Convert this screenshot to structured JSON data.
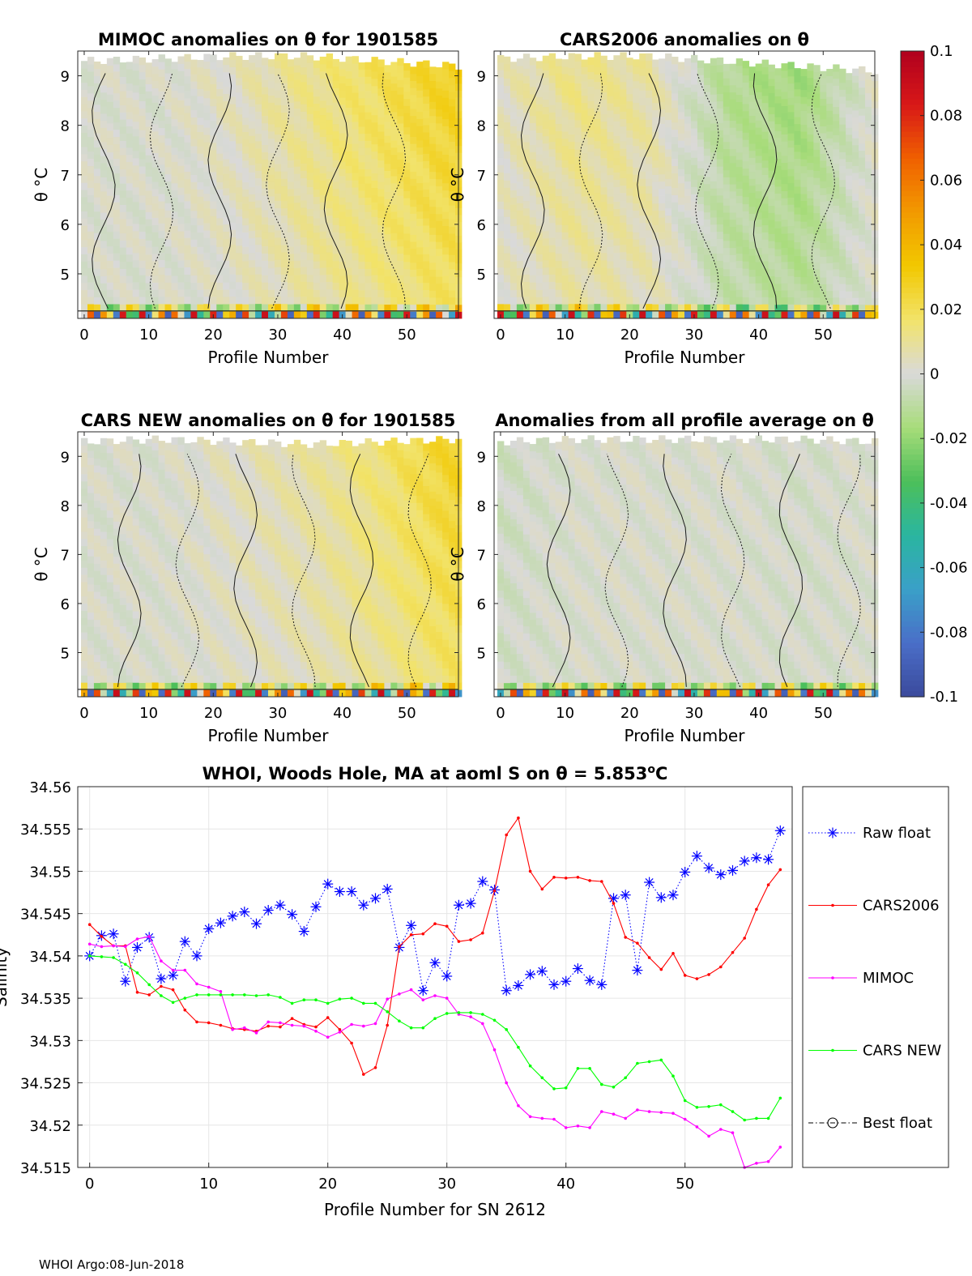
{
  "footer": "WHOI Argo:08-Jun-2018",
  "colors": {
    "raw_float": "#0000ff",
    "cars2006": "#ff0000",
    "mimoc": "#ff00ff",
    "cars_new": "#00ff00",
    "best_float": "#000000",
    "grid": "#e6e6e6"
  },
  "colorbar": {
    "ticks": [
      "0.1",
      "0.08",
      "0.06",
      "0.04",
      "0.02",
      "0",
      "-0.02",
      "-0.04",
      "-0.06",
      "-0.08",
      "-0.1"
    ],
    "range": [
      -0.1,
      0.1
    ],
    "colormap": [
      "#3b4a9c",
      "#4a6ec8",
      "#3aa0c8",
      "#2ab5a0",
      "#4cbf5a",
      "#a8dc7a",
      "#d9d9d9",
      "#f2e36a",
      "#f2c800",
      "#f29a00",
      "#f06000",
      "#d81818",
      "#b0001e"
    ]
  },
  "chart_data": [
    {
      "type": "heatmap",
      "title": "MIMOC anomalies on θ  for 1901585",
      "xlabel": "Profile Number",
      "ylabel": "θ °C",
      "xlim": [
        -1,
        58
      ],
      "ylim": [
        4.1,
        9.5
      ],
      "xticks": [
        "0",
        "10",
        "20",
        "30",
        "40",
        "50"
      ],
      "yticks": [
        "5",
        "6",
        "7",
        "8",
        "9"
      ],
      "trend": [
        0.0,
        0.0,
        0.004,
        0.012,
        0.02,
        0.03
      ],
      "top_profile": [
        9.3,
        9.35,
        9.4,
        9.4,
        9.3,
        9.2
      ]
    },
    {
      "type": "heatmap",
      "title": "CARS2006 anomalies on θ",
      "xlabel": "Profile Number",
      "ylabel": "θ °C",
      "xlim": [
        -1,
        58
      ],
      "ylim": [
        4.1,
        9.5
      ],
      "xticks": [
        "0",
        "10",
        "20",
        "30",
        "40",
        "50"
      ],
      "yticks": [
        "5",
        "6",
        "7",
        "8",
        "9"
      ],
      "trend": [
        0.004,
        0.012,
        0.008,
        -0.012,
        -0.018,
        0.002
      ],
      "top_profile": [
        9.35,
        9.4,
        9.4,
        9.3,
        9.2,
        9.1
      ]
    },
    {
      "type": "heatmap",
      "title": "CARS NEW anomalies on θ for 1901585",
      "xlabel": "Profile Number",
      "ylabel": "θ °C",
      "xlim": [
        -1,
        58
      ],
      "ylim": [
        4.1,
        9.5
      ],
      "xticks": [
        "0",
        "10",
        "20",
        "30",
        "40",
        "50"
      ],
      "yticks": [
        "5",
        "6",
        "7",
        "8",
        "9"
      ],
      "trend": [
        0.0,
        0.0,
        0.004,
        0.008,
        0.016,
        0.028
      ],
      "top_profile": [
        9.3,
        9.35,
        9.3,
        9.25,
        9.3,
        9.35
      ]
    },
    {
      "type": "heatmap",
      "title": "Anomalies from all profile average on θ",
      "xlabel": "Profile Number",
      "ylabel": "θ °C",
      "xlim": [
        -1,
        58
      ],
      "ylim": [
        4.1,
        9.5
      ],
      "xticks": [
        "0",
        "10",
        "20",
        "30",
        "40",
        "50"
      ],
      "yticks": [
        "5",
        "6",
        "7",
        "8",
        "9"
      ],
      "trend": [
        -0.004,
        0.0,
        0.0,
        0.0,
        -0.002,
        0.0
      ],
      "top_profile": [
        9.3,
        9.35,
        9.35,
        9.35,
        9.35,
        9.3
      ]
    },
    {
      "type": "line",
      "title": "WHOI, Woods Hole, MA at aoml S on θ = 5.853°C",
      "title_main": "WHOI, Woods Hole, MA at aoml S on θ = 5.853",
      "title_unit": "C",
      "xlabel": "Profile Number for SN 2612",
      "ylabel": "Salinity",
      "xlim": [
        -1,
        59
      ],
      "ylim": [
        34.515,
        34.56
      ],
      "xticks": [
        0,
        10,
        20,
        30,
        40,
        50
      ],
      "yticks": [
        "34.515",
        "34.52",
        "34.525",
        "34.53",
        "34.535",
        "34.54",
        "34.545",
        "34.55",
        "34.555",
        "34.56"
      ],
      "x": [
        0,
        1,
        2,
        3,
        4,
        5,
        6,
        7,
        8,
        9,
        10,
        11,
        12,
        13,
        14,
        15,
        16,
        17,
        18,
        19,
        20,
        21,
        22,
        23,
        24,
        25,
        26,
        27,
        28,
        29,
        30,
        31,
        32,
        33,
        34,
        35,
        36,
        37,
        38,
        39,
        40,
        41,
        42,
        43,
        44,
        45,
        46,
        47,
        48,
        49,
        50,
        51,
        52,
        53,
        54,
        55,
        56,
        57,
        58
      ],
      "legend": [
        "Raw float",
        "CARS2006",
        "MIMOC",
        "CARS NEW",
        "Best float"
      ],
      "series": [
        {
          "name": "Raw float",
          "style": "dotted-star",
          "values": [
            34.54,
            34.5424,
            34.5426,
            34.537,
            34.541,
            34.5422,
            34.5373,
            34.5377,
            34.5417,
            34.54,
            34.5432,
            34.5439,
            34.5447,
            34.5452,
            34.5438,
            34.5454,
            34.546,
            34.5449,
            34.5429,
            34.5458,
            34.5485,
            34.5476,
            34.5476,
            34.546,
            34.5468,
            34.5479,
            34.541,
            34.5436,
            34.5359,
            34.5392,
            34.5376,
            34.546,
            34.5462,
            34.5488,
            34.5478,
            34.5359,
            34.5365,
            34.5378,
            34.5382,
            34.5366,
            34.537,
            34.5385,
            34.5371,
            34.5366,
            34.5468,
            34.5472,
            34.5383,
            34.5487,
            34.5469,
            34.5472,
            34.5499,
            34.5518,
            34.5504,
            34.5496,
            34.5501,
            34.5512,
            34.5516,
            34.5514,
            34.5548
          ]
        },
        {
          "name": "CARS2006",
          "style": "solid-dot",
          "values": [
            34.5437,
            34.5423,
            34.5412,
            34.5412,
            34.5357,
            34.5354,
            34.5364,
            34.536,
            34.5336,
            34.5322,
            34.5321,
            34.5318,
            34.5314,
            34.5313,
            34.5311,
            34.5317,
            34.5316,
            34.5326,
            34.5319,
            34.5316,
            34.5327,
            34.5313,
            34.5297,
            34.526,
            34.5268,
            34.5318,
            34.5411,
            34.5425,
            34.5426,
            34.5438,
            34.5435,
            34.5417,
            34.5419,
            34.5427,
            34.5477,
            34.5543,
            34.5563,
            34.55,
            34.5479,
            34.5493,
            34.5492,
            34.5493,
            34.5489,
            34.5488,
            34.5462,
            34.5422,
            34.5415,
            34.5398,
            34.5384,
            34.5403,
            34.5377,
            34.5373,
            34.5378,
            34.5387,
            34.5404,
            34.5421,
            34.5455,
            34.5484,
            34.5502
          ]
        },
        {
          "name": "MIMOC",
          "style": "solid-dot",
          "values": [
            34.5414,
            34.5411,
            34.5412,
            34.5411,
            34.542,
            34.5423,
            34.5394,
            34.5383,
            34.5383,
            34.5367,
            34.5363,
            34.5358,
            34.5313,
            34.5315,
            34.5309,
            34.5322,
            34.5321,
            34.5318,
            34.5317,
            34.5311,
            34.5304,
            34.531,
            34.5319,
            34.5317,
            34.532,
            34.5349,
            34.5355,
            34.536,
            34.5348,
            34.5353,
            34.535,
            34.5331,
            34.5328,
            34.532,
            34.5289,
            34.525,
            34.5223,
            34.521,
            34.5208,
            34.5207,
            34.5197,
            34.5199,
            34.5197,
            34.5216,
            34.5213,
            34.5208,
            34.5218,
            34.5216,
            34.5215,
            34.5214,
            34.5207,
            34.5198,
            34.5187,
            34.5195,
            34.5191,
            34.515,
            34.5155,
            34.5157,
            34.5174
          ]
        },
        {
          "name": "CARS NEW",
          "style": "solid-dot",
          "values": [
            34.54,
            34.5399,
            34.5398,
            34.539,
            34.538,
            34.5366,
            34.5353,
            34.5345,
            34.535,
            34.5354,
            34.5354,
            34.5354,
            34.5354,
            34.5354,
            34.5353,
            34.5354,
            34.5351,
            34.5344,
            34.5348,
            34.5348,
            34.5344,
            34.5349,
            34.535,
            34.5344,
            34.5344,
            34.5334,
            34.5323,
            34.5315,
            34.5315,
            34.5326,
            34.5332,
            34.5333,
            34.5333,
            34.5331,
            34.5324,
            34.5313,
            34.5292,
            34.527,
            34.5256,
            34.5243,
            34.5244,
            34.5267,
            34.5267,
            34.5248,
            34.5245,
            34.5256,
            34.5273,
            34.5275,
            34.5277,
            34.5258,
            34.5229,
            34.5221,
            34.5222,
            34.5224,
            34.5216,
            34.5206,
            34.5208,
            34.5208,
            34.5232
          ]
        }
      ]
    }
  ]
}
